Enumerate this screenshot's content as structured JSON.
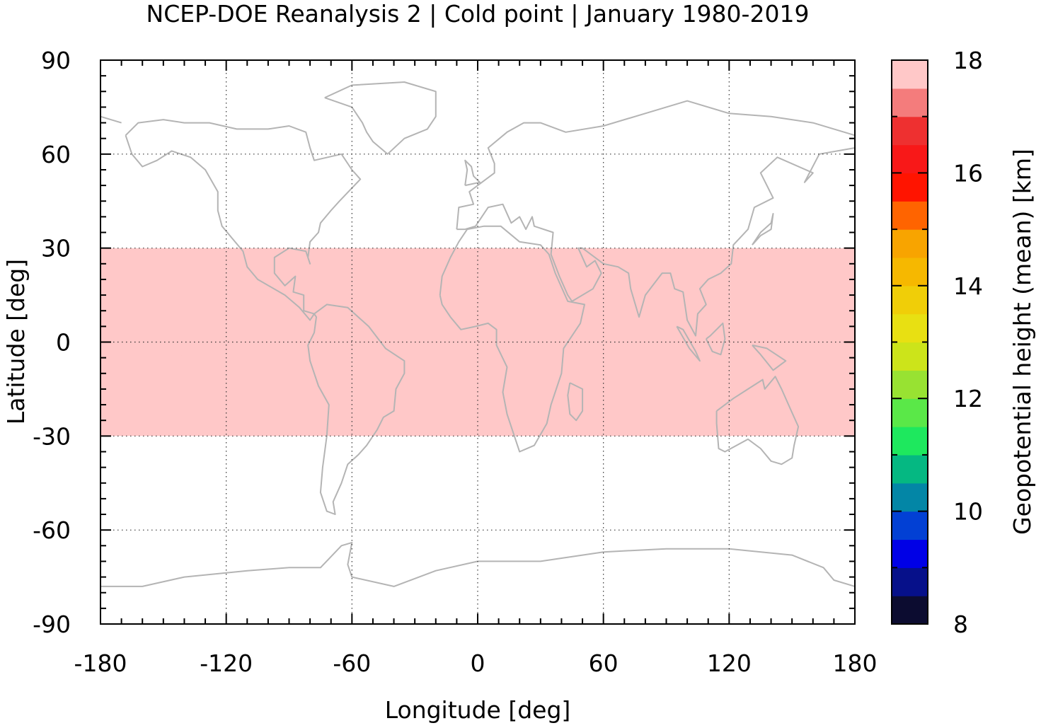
{
  "chart_data": {
    "type": "heatmap",
    "title": "NCEP-DOE Reanalysis 2 | Cold point | January 1980-2019",
    "xlabel": "Longitude [deg]",
    "ylabel": "Latitude [deg]",
    "colorbar_label": "Geopotential height (mean) [km]",
    "xlim": [
      -180,
      180
    ],
    "ylim": [
      -90,
      90
    ],
    "xticks": [
      -180,
      -120,
      -60,
      0,
      60,
      120,
      180
    ],
    "yticks": [
      -90,
      -60,
      -30,
      0,
      30,
      60,
      90
    ],
    "grid": true,
    "data_lat_range": [
      -30,
      30
    ],
    "colorbar": {
      "range": [
        8,
        18
      ],
      "ticks": [
        8,
        10,
        12,
        14,
        16,
        18
      ],
      "step": 0.5,
      "colors": [
        "#0c0c30",
        "#06108a",
        "#0000e6",
        "#0240d4",
        "#0386a6",
        "#05b882",
        "#1ee85e",
        "#5ae848",
        "#98e232",
        "#cce41a",
        "#e8e012",
        "#f0ce08",
        "#f6b800",
        "#f8a400",
        "#ff6400",
        "#ff1400",
        "#f81818",
        "#ee3030",
        "#f47c7c",
        "#ffc8c8"
      ]
    },
    "regions": [
      {
        "value": 17.5,
        "description": "background",
        "polygon": [
          [
            -180,
            30
          ],
          [
            180,
            30
          ],
          [
            180,
            -30
          ],
          [
            -180,
            -30
          ]
        ]
      },
      {
        "value": 18.0,
        "polygon": [
          [
            -122,
            30
          ],
          [
            -130,
            29
          ],
          [
            -136,
            27
          ],
          [
            -139,
            22
          ],
          [
            -141,
            14
          ],
          [
            -142,
            7
          ],
          [
            -143,
            2
          ],
          [
            -142,
            -3
          ],
          [
            -139,
            -9
          ],
          [
            -137,
            -17
          ],
          [
            -134,
            -22
          ],
          [
            -130,
            -27
          ],
          [
            -127,
            -30
          ],
          [
            -88,
            -30
          ],
          [
            -86,
            -26
          ],
          [
            -83,
            -20
          ],
          [
            -80,
            -13
          ],
          [
            -78,
            -7
          ],
          [
            -75,
            -2
          ],
          [
            -76,
            3
          ],
          [
            -79,
            8
          ],
          [
            -84,
            11
          ],
          [
            -82,
            16
          ],
          [
            -76,
            20
          ],
          [
            -68,
            22
          ],
          [
            -60,
            25
          ],
          [
            -50,
            27
          ],
          [
            -45,
            30
          ]
        ]
      },
      {
        "value": 18.0,
        "polygon": [
          [
            -30,
            30
          ],
          [
            -17,
            27
          ],
          [
            -10,
            23
          ],
          [
            -15,
            19
          ],
          [
            -16,
            14
          ],
          [
            -12,
            11
          ],
          [
            5,
            11
          ],
          [
            22,
            10
          ],
          [
            35,
            12
          ],
          [
            42,
            16
          ],
          [
            45,
            21
          ],
          [
            52,
            25
          ],
          [
            60,
            28
          ],
          [
            60,
            30
          ]
        ]
      },
      {
        "value": 18.0,
        "polygon": [
          [
            -42,
            -30
          ],
          [
            -40,
            -18
          ],
          [
            -35,
            -10
          ],
          [
            -27,
            -6
          ],
          [
            -16,
            -6
          ],
          [
            -7,
            -11
          ],
          [
            1,
            -19
          ],
          [
            11,
            -26
          ],
          [
            19,
            -30
          ]
        ]
      },
      {
        "value": 18.0,
        "polygon": [
          [
            48,
            -30
          ],
          [
            55,
            -24
          ],
          [
            65,
            -21
          ],
          [
            78,
            -21
          ],
          [
            92,
            -23
          ],
          [
            100,
            -26
          ],
          [
            110,
            -30
          ]
        ]
      },
      {
        "value": 18.0,
        "polygon": [
          [
            82,
            30
          ],
          [
            82,
            25
          ],
          [
            88,
            24
          ],
          [
            96,
            24
          ],
          [
            106,
            25
          ],
          [
            106,
            30
          ]
        ]
      }
    ]
  }
}
